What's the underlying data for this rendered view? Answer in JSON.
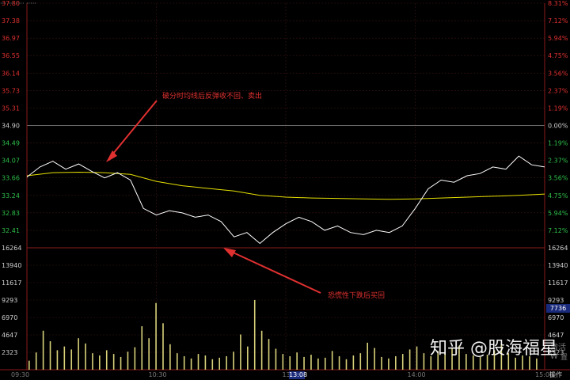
{
  "header": {
    "title_partial": "··· ···  ···· ·····"
  },
  "price_axis": {
    "left_labels": [
      "37.80",
      "37.38",
      "36.97",
      "36.55",
      "36.14",
      "35.73",
      "35.31",
      "34.90",
      "34.49",
      "34.07",
      "33.66",
      "33.24",
      "32.83",
      "32.41"
    ],
    "right_labels": [
      "8.31%",
      "7.12%",
      "5.94%",
      "4.75%",
      "3.56%",
      "2.37%",
      "1.19%",
      "0.00%",
      "1.19%",
      "2.37%",
      "3.56%",
      "4.75%",
      "5.94%",
      "7.12%"
    ],
    "up_color": "#e03030",
    "down_color": "#2fbf4a",
    "neutral_color": "#cfcfcf"
  },
  "volume_axis": {
    "labels": [
      "16264",
      "13940",
      "11617",
      "9293",
      "6970",
      "4647",
      "2323"
    ]
  },
  "time_axis": {
    "labels": [
      "09:30",
      "10:30",
      "13:00",
      "14:00",
      "15:00"
    ],
    "cursor_time": "13:08"
  },
  "annotations": {
    "sell_note": "破分时均线后反弹收不回、卖出",
    "buy_note": "恐慌性下跌后买回"
  },
  "right_panel": {
    "cursor_value": "7736",
    "side_text_1": "激活 W",
    "side_text_2": "置",
    "operate": "操作"
  },
  "watermark": "知乎 @股海福星",
  "chart_data": {
    "type": "line",
    "title": "",
    "ylim": [
      32.41,
      37.8
    ],
    "prev_close": 34.9,
    "series": [
      {
        "x": [
          0,
          6,
          12,
          18,
          24,
          30,
          36,
          42,
          48,
          54,
          60,
          66,
          72,
          78,
          84,
          90,
          96,
          102,
          108,
          114,
          120,
          126,
          132,
          138,
          144,
          150,
          156,
          162,
          168,
          174,
          180,
          186,
          192,
          198,
          204,
          210,
          216,
          222,
          228,
          234,
          240
        ],
        "values": [
          33.82,
          34.05,
          34.18,
          34.0,
          34.12,
          33.95,
          33.8,
          33.92,
          33.75,
          33.1,
          32.95,
          33.05,
          33.0,
          32.9,
          32.95,
          32.8,
          32.45,
          32.55,
          32.3,
          32.55,
          32.75,
          32.9,
          32.8,
          32.6,
          32.7,
          32.55,
          32.5,
          32.6,
          32.55,
          32.7,
          33.1,
          33.55,
          33.75,
          33.7,
          33.85,
          33.9,
          34.05,
          34.0,
          34.3,
          34.1,
          34.05
        ]
      },
      {
        "x": [
          0,
          12,
          24,
          36,
          48,
          60,
          72,
          84,
          96,
          108,
          120,
          132,
          144,
          156,
          168,
          180,
          192,
          204,
          216,
          228,
          240
        ],
        "values": [
          33.85,
          33.92,
          33.93,
          33.92,
          33.88,
          33.72,
          33.62,
          33.56,
          33.5,
          33.4,
          33.36,
          33.34,
          33.33,
          33.32,
          33.31,
          33.32,
          33.34,
          33.36,
          33.38,
          33.4,
          33.43
        ]
      }
    ],
    "volume": [
      1200,
      2300,
      5200,
      3800,
      2600,
      3100,
      2700,
      4200,
      3500,
      2200,
      1900,
      2600,
      2100,
      1700,
      2400,
      3000,
      5800,
      4200,
      8900,
      6200,
      3400,
      2200,
      1800,
      1500,
      2100,
      1900,
      1400,
      1600,
      1800,
      2400,
      4700,
      3100,
      9300,
      5200,
      4100,
      2800,
      2100,
      1800,
      2300,
      1700,
      2000,
      1500,
      1600,
      2500,
      1800,
      1400,
      1900,
      2200,
      3600,
      2900,
      1700,
      1500,
      1800,
      2100,
      2700,
      3100,
      2200,
      1800,
      2500,
      2300,
      2800,
      3200,
      2100,
      1900,
      1700,
      2000,
      2600,
      3500,
      2200,
      1600,
      1900,
      1800,
      1500
    ]
  }
}
